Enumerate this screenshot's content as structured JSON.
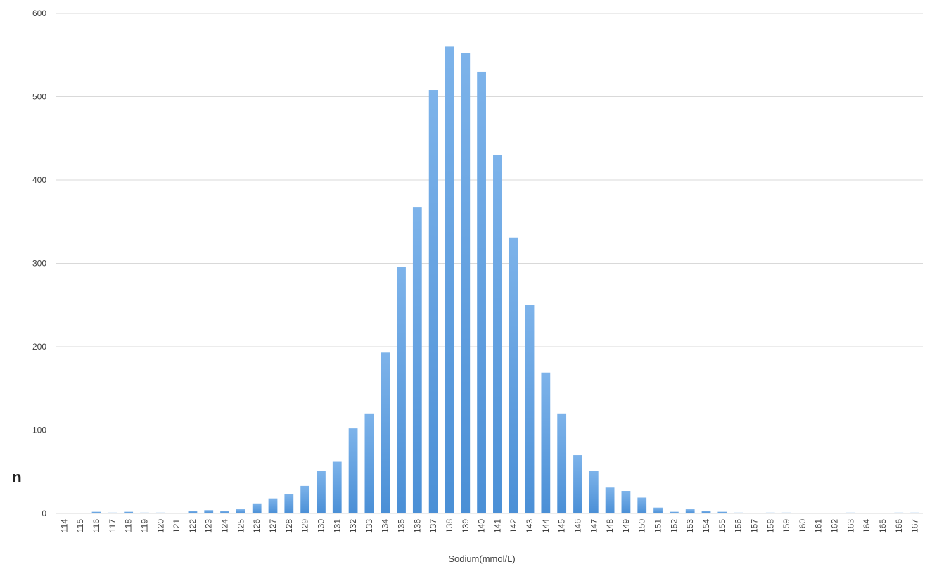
{
  "chart_data": {
    "type": "bar",
    "title": "",
    "xlabel": "Sodium(mmol/L)",
    "ylabel": "n",
    "ylim": [
      0,
      600
    ],
    "yticks": [
      0,
      100,
      200,
      300,
      400,
      500,
      600
    ],
    "grid": true,
    "bar_color": "#4a8fd6",
    "bar_color_light": "#7db3ea",
    "grid_color": "#d9d9d9",
    "categories": [
      "114",
      "115",
      "116",
      "117",
      "118",
      "119",
      "120",
      "121",
      "122",
      "123",
      "124",
      "125",
      "126",
      "127",
      "128",
      "129",
      "130",
      "131",
      "132",
      "133",
      "134",
      "135",
      "136",
      "137",
      "138",
      "139",
      "140",
      "141",
      "142",
      "143",
      "144",
      "145",
      "146",
      "147",
      "148",
      "149",
      "150",
      "151",
      "152",
      "153",
      "154",
      "155",
      "156",
      "157",
      "158",
      "159",
      "160",
      "161",
      "162",
      "163",
      "164",
      "165",
      "166",
      "167"
    ],
    "values": [
      0,
      0,
      2,
      1,
      2,
      1,
      1,
      0,
      3,
      4,
      3,
      5,
      12,
      18,
      23,
      33,
      51,
      62,
      102,
      120,
      193,
      296,
      367,
      508,
      560,
      552,
      530,
      430,
      331,
      250,
      169,
      120,
      70,
      51,
      31,
      27,
      19,
      7,
      2,
      5,
      3,
      2,
      1,
      0,
      1,
      1,
      0,
      0,
      0,
      1,
      0,
      0,
      1,
      1
    ]
  }
}
